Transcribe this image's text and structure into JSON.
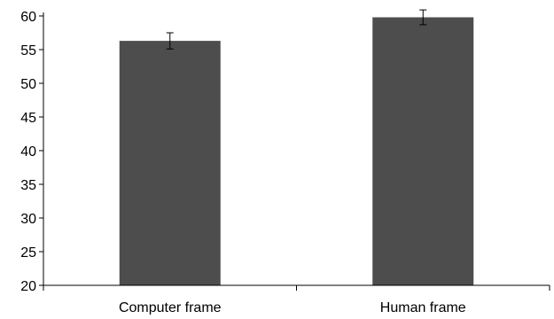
{
  "chart_data": {
    "type": "bar",
    "categories": [
      "Computer frame",
      "Human frame"
    ],
    "values": [
      56.3,
      59.8
    ],
    "error": [
      1.2,
      1.1
    ],
    "ylim": [
      20,
      60
    ],
    "yticks": [
      20,
      25,
      30,
      35,
      40,
      45,
      50,
      55,
      60
    ],
    "ytick_labels": [
      "20",
      "25",
      "30",
      "35",
      "40",
      "45",
      "50",
      "55",
      "60"
    ],
    "title": "",
    "xlabel": "",
    "ylabel": "",
    "grid": false,
    "bar_color": "#4d4d4d",
    "axis_color": "#000000"
  }
}
